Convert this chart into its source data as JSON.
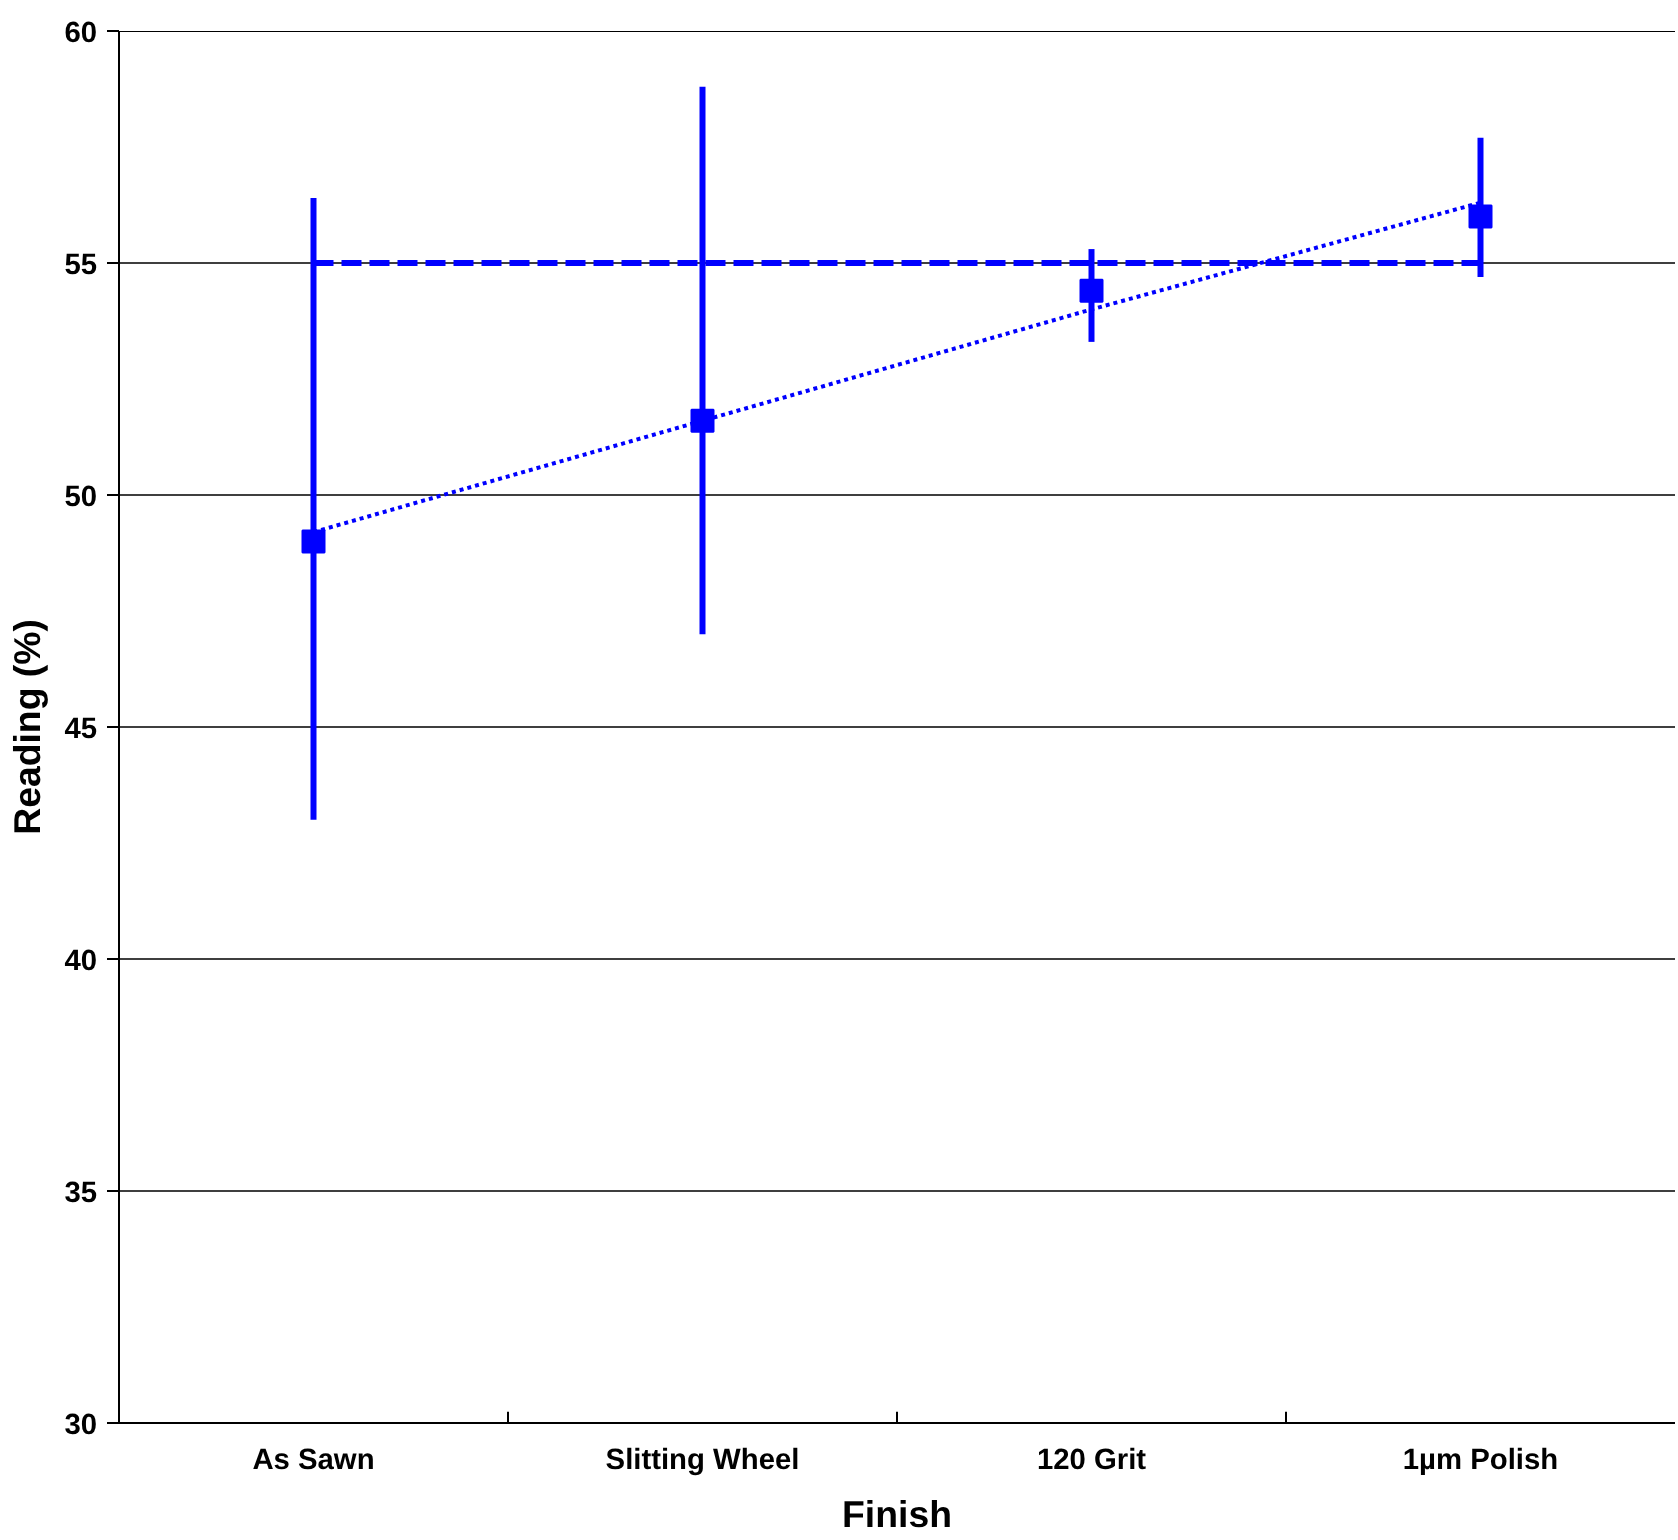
{
  "chart_data": {
    "type": "scatter",
    "xlabel": "Finish",
    "ylabel": "Reading (%)",
    "categories": [
      "As Sawn",
      "Slitting Wheel",
      "120 Grit",
      "1µm Polish"
    ],
    "series": [
      {
        "type": "line",
        "color": "#0000ff",
        "values": [
          55.0,
          55.0,
          55.0,
          55.0
        ],
        "line_style": "dashed",
        "marker": "none"
      },
      {
        "type": "line",
        "color": "#0000ff",
        "values": [
          49.2,
          51.6,
          54.0,
          56.3
        ],
        "line_style": "dotted",
        "marker": "none"
      },
      {
        "color": "#0000ff",
        "values": [
          49.0,
          51.6,
          54.4,
          56.0
        ],
        "marker": "square",
        "errors": [
          [
            43.0,
            56.4
          ],
          [
            47.0,
            58.8
          ],
          [
            53.3,
            55.3
          ],
          [
            54.7,
            57.7
          ]
        ]
      }
    ],
    "ylim": [
      30,
      60
    ],
    "yticks": [
      30,
      35,
      40,
      45,
      50,
      55,
      60
    ],
    "grid": "y"
  }
}
